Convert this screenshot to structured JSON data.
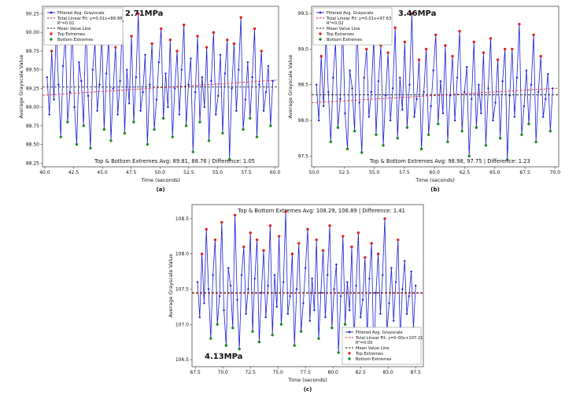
{
  "page": {
    "background": "#ffffff"
  },
  "colors": {
    "line": "#1c1cd6",
    "top": "#e02020",
    "bottom": "#1f8b1f",
    "mean": "#222222",
    "frame": "#333333"
  },
  "chart_data": [
    {
      "id": "a",
      "type": "line",
      "caption": "(a)",
      "title": "2.71MPa",
      "title_pos": "top",
      "xlabel": "Time (seconds)",
      "ylabel": "Average Grayscale Value",
      "xlim": [
        39.8,
        60.3
      ],
      "xticks": [
        40.0,
        42.5,
        45.0,
        47.5,
        50.0,
        52.5,
        55.0,
        57.5,
        60.0
      ],
      "x_start": 40.2,
      "x_step": 0.198,
      "ylim": [
        88.2,
        90.35
      ],
      "yticks": [
        88.25,
        88.5,
        88.75,
        89.0,
        89.25,
        89.5,
        89.75,
        90.0,
        90.25
      ],
      "ytick_dec": 2,
      "mean": 89.27,
      "fit": {
        "slope": 0.01,
        "intercept": 88.98
      },
      "legend_pos": "top-left",
      "legend": {
        "series": "Filtered Avg. Grayscale",
        "fit_line1": "Total Linear Fit: y=0.01x+88.98",
        "fit_line2": "R²=0.01",
        "mean": "Mean Value Line",
        "top": "Top Extremes",
        "bottom": "Bottom Extremes"
      },
      "annotation": "Top & Bottom Extremes Avg: 89.81, 88.76 | Difference: 1.05",
      "annotation_pos": "bottom",
      "extremes": {
        "top_avg": 89.81,
        "bottom_avg": 88.76,
        "difference": 1.05
      },
      "top_threshold": 89.72,
      "bottom_threshold": 88.85,
      "values": [
        89.4,
        88.9,
        89.75,
        89.1,
        90.05,
        89.3,
        88.6,
        89.55,
        89.95,
        88.8,
        89.2,
        90.1,
        89.0,
        88.5,
        89.6,
        89.35,
        88.75,
        90.2,
        89.15,
        88.45,
        89.5,
        89.85,
        88.95,
        89.3,
        90.0,
        88.7,
        89.45,
        89.9,
        88.55,
        89.25,
        89.8,
        88.9,
        89.35,
        90.15,
        88.65,
        89.5,
        89.05,
        89.95,
        88.8,
        89.4,
        90.25,
        88.95,
        89.2,
        89.7,
        88.5,
        89.3,
        89.85,
        88.7,
        89.1,
        89.6,
        90.05,
        88.85,
        89.45,
        89.0,
        89.9,
        88.6,
        89.25,
        89.75,
        88.9,
        89.5,
        90.1,
        88.75,
        89.3,
        89.65,
        88.4,
        89.2,
        89.95,
        88.8,
        89.4,
        89.0,
        89.8,
        88.55,
        89.35,
        90.0,
        88.9,
        89.15,
        89.7,
        88.65,
        89.45,
        89.9,
        88.3,
        89.25,
        89.85,
        88.95,
        89.5,
        90.2,
        88.7,
        89.1,
        89.6,
        88.85,
        89.4,
        90.05,
        88.6,
        89.3,
        89.75,
        88.95,
        89.2,
        89.55,
        88.75,
        89.35
      ]
    },
    {
      "id": "b",
      "type": "line",
      "caption": "(b)",
      "title": "3.46MPa",
      "title_pos": "top",
      "xlabel": "Time (seconds)",
      "ylabel": "Average Grayscale Value",
      "xlim": [
        49.8,
        70.3
      ],
      "xticks": [
        50.0,
        52.5,
        55.0,
        57.5,
        60.0,
        62.5,
        65.0,
        67.5,
        70.0
      ],
      "x_start": 50.2,
      "x_step": 0.198,
      "ylim": [
        97.35,
        99.6
      ],
      "yticks": [
        97.5,
        98.0,
        98.5,
        99.0,
        99.5
      ],
      "ytick_dec": 1,
      "mean": 98.36,
      "fit": {
        "slope": 0.01,
        "intercept": 97.63
      },
      "legend_pos": "top-left",
      "legend": {
        "series": "Filtered Avg. Grayscale",
        "fit_line1": "Total Linear Fit: y=0.01x+97.63",
        "fit_line2": "R²=0.02",
        "mean": "Mean Value Line",
        "top": "Top Extremes",
        "bottom": "Bottom Extremes"
      },
      "annotation": "Top & Bottom Extremes Avg: 98.98, 97.75 | Difference: 1.23",
      "annotation_pos": "bottom",
      "extremes": {
        "top_avg": 98.98,
        "bottom_avg": 97.75,
        "difference": 1.23
      },
      "top_threshold": 98.85,
      "bottom_threshold": 97.95,
      "values": [
        98.5,
        98.0,
        98.9,
        98.2,
        99.2,
        98.4,
        97.7,
        98.6,
        99.1,
        97.9,
        98.3,
        99.3,
        98.1,
        97.6,
        98.7,
        98.45,
        97.85,
        99.4,
        98.25,
        97.55,
        98.6,
        99.0,
        98.05,
        98.4,
        99.15,
        97.8,
        98.55,
        99.05,
        97.65,
        98.35,
        98.95,
        98.0,
        98.45,
        99.3,
        97.75,
        98.6,
        98.15,
        99.1,
        97.9,
        98.5,
        99.5,
        98.05,
        98.3,
        98.85,
        97.6,
        98.4,
        99.0,
        97.8,
        98.2,
        98.7,
        99.2,
        97.95,
        98.55,
        98.1,
        99.05,
        97.7,
        98.35,
        98.9,
        98.0,
        98.6,
        99.25,
        97.85,
        98.4,
        98.75,
        97.5,
        98.3,
        99.1,
        97.9,
        98.5,
        98.1,
        98.95,
        97.65,
        98.45,
        99.15,
        98.0,
        98.25,
        98.85,
        97.75,
        98.55,
        99.0,
        97.45,
        98.35,
        99.0,
        98.05,
        98.6,
        99.35,
        97.8,
        98.2,
        98.7,
        97.95,
        98.5,
        99.2,
        97.7,
        98.4,
        98.9,
        98.05,
        98.3,
        98.65,
        97.85,
        98.45
      ]
    },
    {
      "id": "c",
      "type": "line",
      "caption": "(c)",
      "title": "4.13MPa",
      "title_pos": "bottom-left",
      "xlabel": "Time (seconds)",
      "ylabel": "Average Grayscale Value",
      "xlim": [
        67.2,
        88.2
      ],
      "xticks": [
        67.5,
        70.0,
        72.5,
        75.0,
        77.5,
        80.0,
        82.5,
        85.0,
        87.5
      ],
      "x_start": 67.7,
      "x_step": 0.2,
      "ylim": [
        106.4,
        108.7
      ],
      "yticks": [
        106.5,
        107.0,
        107.5,
        108.0,
        108.5
      ],
      "ytick_dec": 1,
      "mean": 107.45,
      "fit": {
        "slope": 0.0,
        "intercept": 107.21
      },
      "legend_pos": "bottom-right",
      "legend": {
        "series": "Filtered Avg. Grayscale",
        "fit_line1": "Total Linear Fit: y=0.00x+107.21",
        "fit_line2": "R²=0.00",
        "mean": "Mean Value Line",
        "top": "Top Extremes",
        "bottom": "Bottom Extremes"
      },
      "annotation": "Top & Bottom Extremes Avg: 108.29, 106.89 | Difference: 1.41",
      "annotation_pos": "top",
      "extremes": {
        "top_avg": 108.29,
        "bottom_avg": 106.89,
        "difference": 1.41
      },
      "top_threshold": 107.95,
      "bottom_threshold": 107.0,
      "values": [
        107.6,
        107.1,
        108.0,
        107.3,
        108.35,
        107.5,
        106.8,
        107.7,
        108.2,
        107.0,
        107.4,
        108.45,
        107.2,
        106.7,
        107.8,
        107.55,
        106.95,
        108.55,
        107.35,
        106.65,
        107.7,
        108.1,
        107.15,
        107.5,
        108.3,
        106.9,
        107.65,
        108.2,
        106.75,
        107.45,
        108.05,
        107.1,
        107.55,
        108.4,
        106.85,
        107.7,
        107.25,
        108.25,
        107.0,
        107.6,
        108.6,
        107.15,
        107.4,
        108.0,
        106.7,
        107.5,
        108.15,
        106.9,
        107.3,
        107.8,
        108.35,
        107.05,
        107.65,
        107.2,
        108.2,
        106.8,
        107.45,
        108.05,
        107.1,
        107.7,
        108.4,
        106.95,
        107.5,
        107.85,
        106.6,
        107.4,
        108.25,
        107.0,
        107.6,
        107.2,
        108.1,
        106.75,
        107.55,
        108.3,
        107.1,
        107.35,
        107.95,
        106.85,
        107.65,
        108.15,
        106.5,
        107.45,
        108.0,
        107.15,
        107.7,
        108.5,
        106.9,
        107.3,
        107.8,
        107.05,
        107.6,
        108.2,
        106.8,
        107.5,
        107.9,
        107.15,
        107.4,
        107.75,
        106.95,
        107.55
      ]
    }
  ]
}
